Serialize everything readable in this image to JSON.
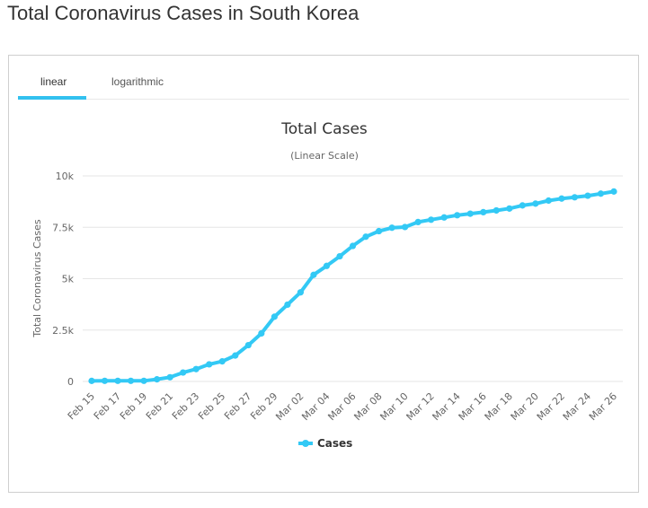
{
  "page": {
    "title": "Total Coronavirus Cases in South Korea"
  },
  "tabs": [
    {
      "label": "linear",
      "active": true
    },
    {
      "label": "logarithmic",
      "active": false
    }
  ],
  "colors": {
    "series": "#33c9f5",
    "grid": "#e6e6e6",
    "text": "#666666",
    "tab_underline": "#33c1ef"
  },
  "chart_data": {
    "type": "line",
    "title": "Total Cases",
    "subtitle": "(Linear Scale)",
    "ylabel": "Total Coronavirus Cases",
    "xlabel": "",
    "ylim": [
      0,
      10000
    ],
    "yticks": [
      0,
      2500,
      5000,
      7500,
      10000
    ],
    "ytick_labels": [
      "0",
      "2.5k",
      "5k",
      "7.5k",
      "10k"
    ],
    "grid": true,
    "legend_position": "bottom-center",
    "x_tick_labels": [
      "Feb 15",
      "Feb 17",
      "Feb 19",
      "Feb 21",
      "Feb 23",
      "Feb 25",
      "Feb 27",
      "Feb 29",
      "Mar 02",
      "Mar 04",
      "Mar 06",
      "Mar 08",
      "Mar 10",
      "Mar 12",
      "Mar 14",
      "Mar 16",
      "Mar 18",
      "Mar 20",
      "Mar 22",
      "Mar 24",
      "Mar 26"
    ],
    "x": [
      "Feb 15",
      "Feb 16",
      "Feb 17",
      "Feb 18",
      "Feb 19",
      "Feb 20",
      "Feb 21",
      "Feb 22",
      "Feb 23",
      "Feb 24",
      "Feb 25",
      "Feb 26",
      "Feb 27",
      "Feb 28",
      "Feb 29",
      "Mar 01",
      "Mar 02",
      "Mar 03",
      "Mar 04",
      "Mar 05",
      "Mar 06",
      "Mar 07",
      "Mar 08",
      "Mar 09",
      "Mar 10",
      "Mar 11",
      "Mar 12",
      "Mar 13",
      "Mar 14",
      "Mar 15",
      "Mar 16",
      "Mar 17",
      "Mar 18",
      "Mar 19",
      "Mar 20",
      "Mar 21",
      "Mar 22",
      "Mar 23",
      "Mar 24",
      "Mar 25",
      "Mar 26"
    ],
    "series": [
      {
        "name": "Cases",
        "values": [
          28,
          29,
          30,
          31,
          31,
          104,
          204,
          433,
          602,
          833,
          977,
          1261,
          1766,
          2337,
          3150,
          3736,
          4335,
          5186,
          5621,
          6088,
          6593,
          7041,
          7313,
          7478,
          7513,
          7755,
          7869,
          7979,
          8086,
          8162,
          8236,
          8320,
          8413,
          8565,
          8652,
          8799,
          8897,
          8961,
          9037,
          9137,
          9241
        ]
      }
    ]
  }
}
